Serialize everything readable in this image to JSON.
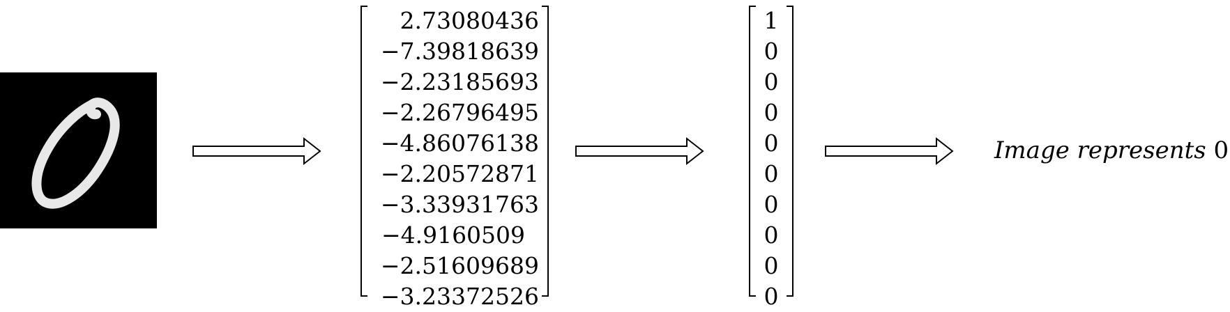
{
  "input_image": {
    "icon": "handwritten-digit-zero-image",
    "background": "#000000",
    "stroke": "#ffffff"
  },
  "logits": [
    "2.73080436",
    "−7.39818639",
    "−2.23185693",
    "−2.26796495",
    "−4.86076138",
    "−2.20572871",
    "−3.33931763",
    "−4.9160509",
    "−2.51609689",
    "−3.23372526"
  ],
  "one_hot": [
    "1",
    "0",
    "0",
    "0",
    "0",
    "0",
    "0",
    "0",
    "0",
    "0"
  ],
  "caption": {
    "text": "Image represents",
    "digit": "0"
  }
}
